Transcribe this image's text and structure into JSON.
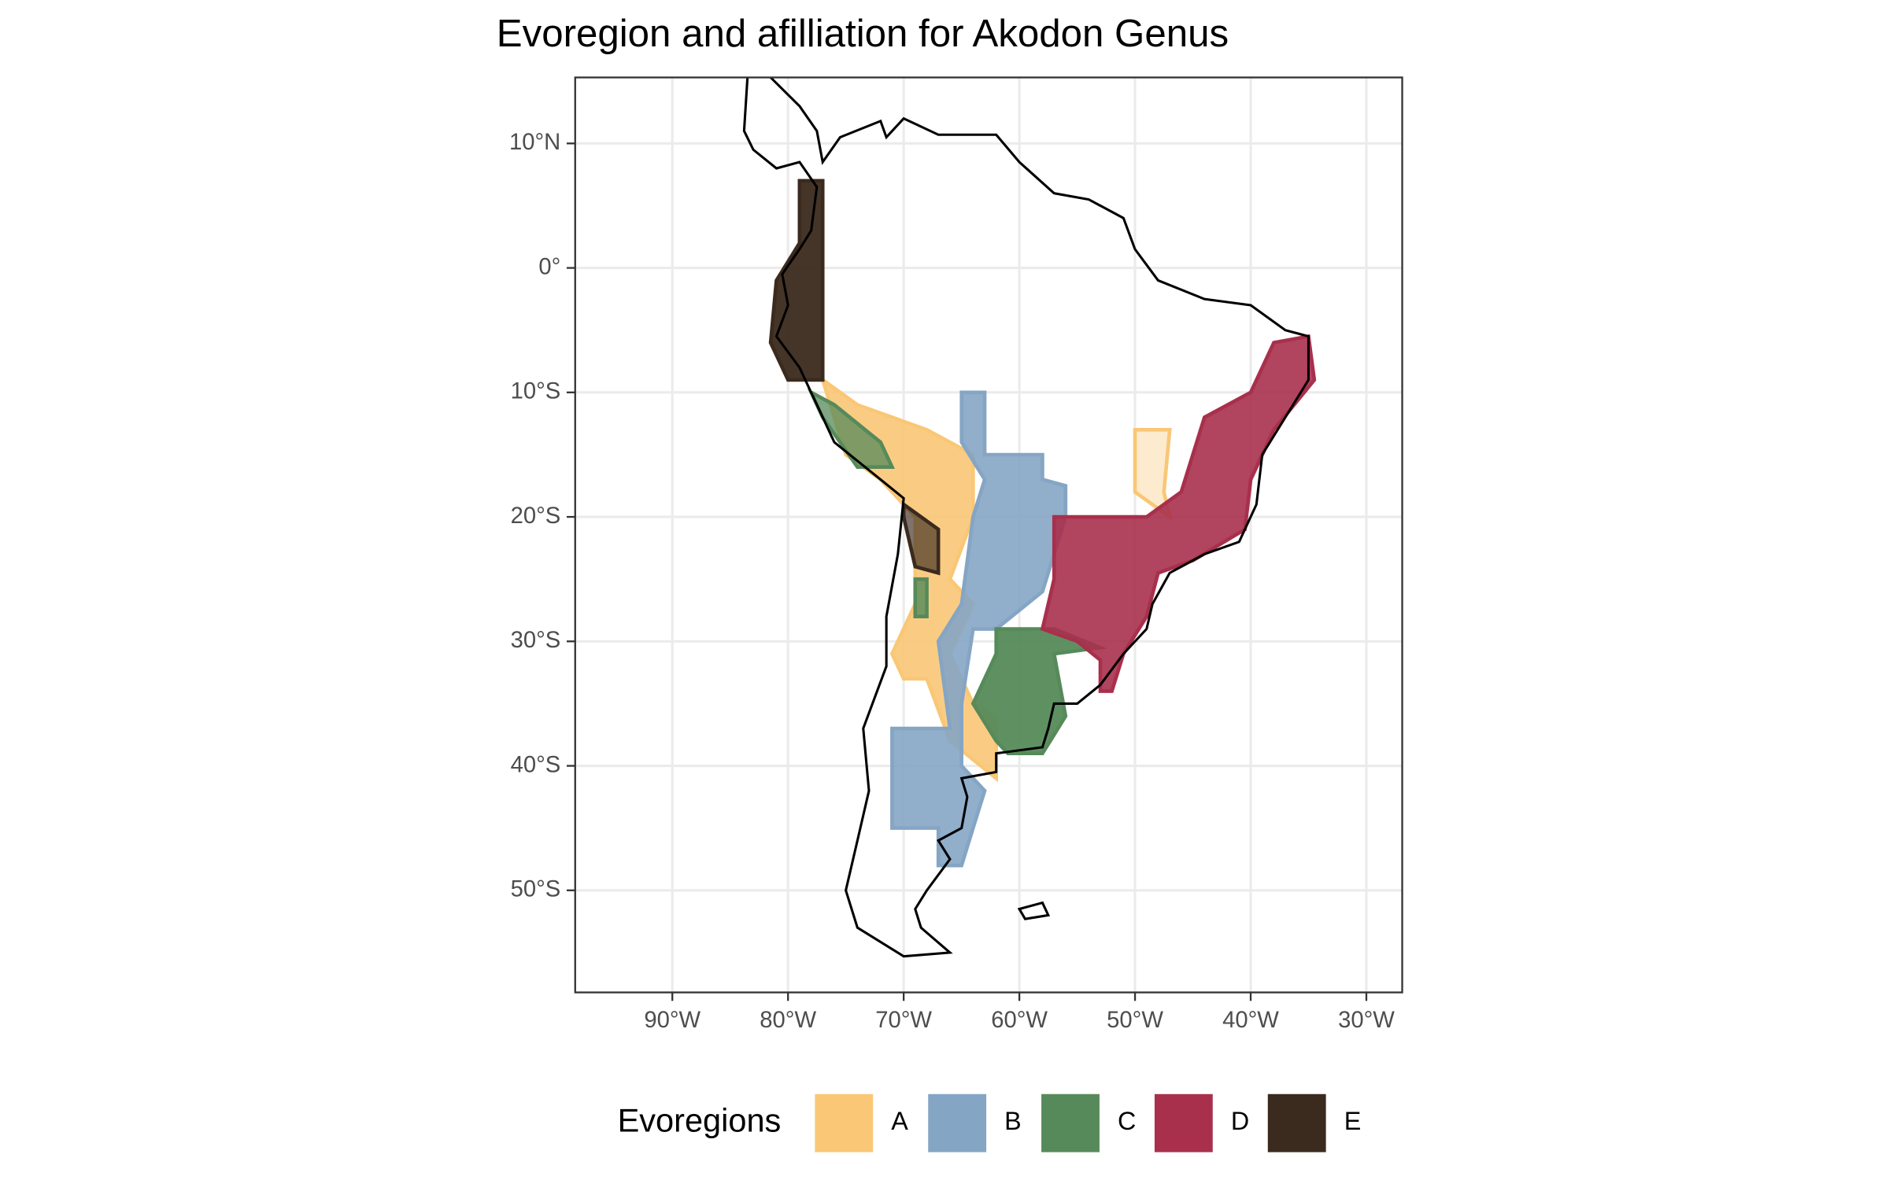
{
  "chart_data": {
    "type": "map",
    "title": "Evoregion and afilliation for Akodon Genus",
    "xlim": [
      -98.4,
      -26.9
    ],
    "ylim": [
      -58.2,
      15.3
    ],
    "xticks": [
      {
        "value": -90,
        "label": "90°W"
      },
      {
        "value": -80,
        "label": "80°W"
      },
      {
        "value": -70,
        "label": "70°W"
      },
      {
        "value": -60,
        "label": "60°W"
      },
      {
        "value": -50,
        "label": "50°W"
      },
      {
        "value": -40,
        "label": "40°W"
      },
      {
        "value": -30,
        "label": "30°W"
      }
    ],
    "yticks": [
      {
        "value": 10,
        "label": "10°N"
      },
      {
        "value": 0,
        "label": "0°"
      },
      {
        "value": -10,
        "label": "10°S"
      },
      {
        "value": -20,
        "label": "20°S"
      },
      {
        "value": -30,
        "label": "30°S"
      },
      {
        "value": -40,
        "label": "40°S"
      },
      {
        "value": -50,
        "label": "50°S"
      }
    ],
    "grid": true,
    "legend_title": "Evoregions",
    "legend_position": "bottom",
    "series": [
      {
        "name": "A",
        "color": "#f9c775"
      },
      {
        "name": "B",
        "color": "#85a5c4"
      },
      {
        "name": "C",
        "color": "#568a5a"
      },
      {
        "name": "D",
        "color": "#a8304c"
      },
      {
        "name": "E",
        "color": "#3b2a1e"
      }
    ]
  }
}
